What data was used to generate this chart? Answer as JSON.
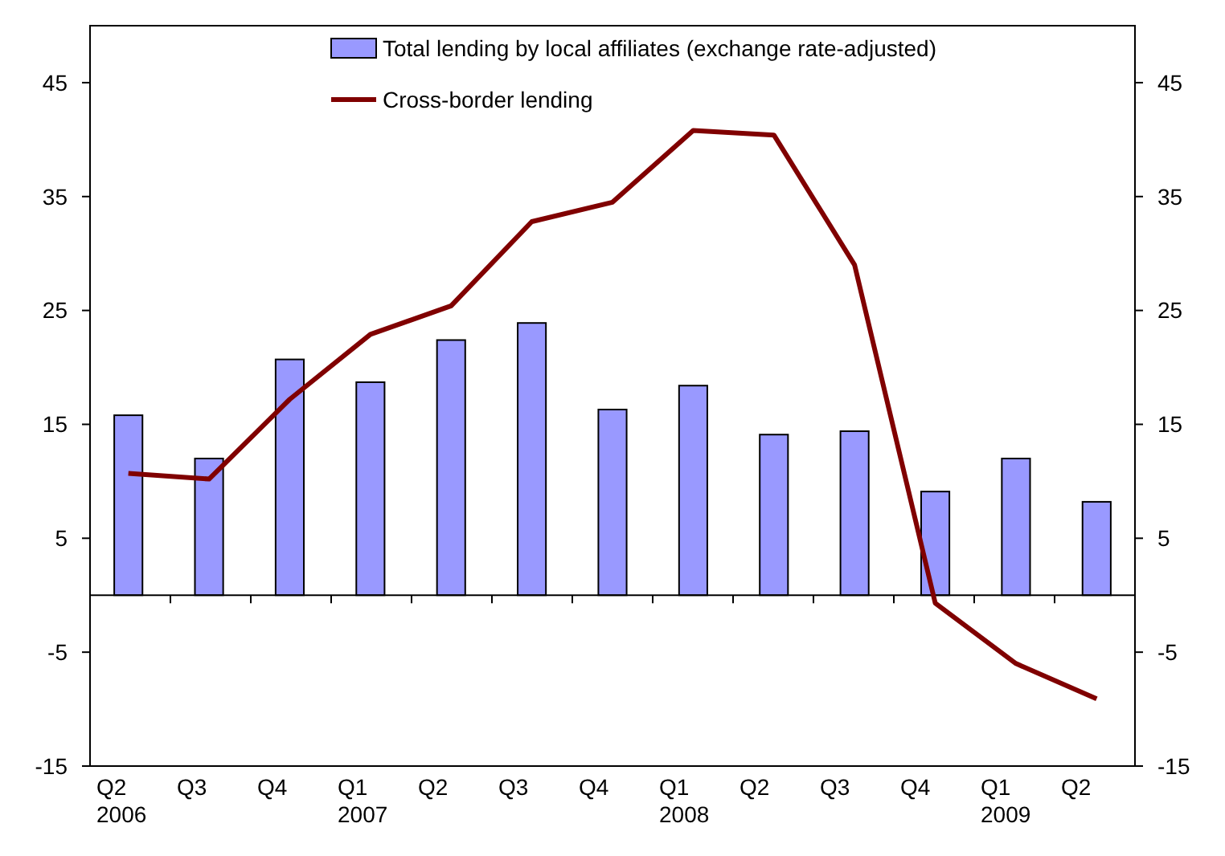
{
  "chart_data": {
    "type": "bar",
    "categories": [
      "Q2\n2006",
      "Q3",
      "Q4",
      "Q1\n2007",
      "Q2",
      "Q3",
      "Q4",
      "Q1\n2008",
      "Q2",
      "Q3",
      "Q4",
      "Q1\n2009",
      "Q2"
    ],
    "series": [
      {
        "name": "Total lending by local affiliates (exchange rate-adjusted)",
        "color": "#9999ff",
        "values": [
          15.8,
          12,
          20.7,
          18.7,
          22.4,
          23.9,
          16.3,
          18.4,
          14.1,
          14.4,
          9.1,
          12,
          8.2
        ]
      },
      {
        "name": "Cross-border lending",
        "type": "line",
        "color": "#800000",
        "values": [
          10.7,
          10.2,
          17.2,
          22.9,
          25.4,
          32.8,
          34.5,
          40.8,
          40.4,
          29,
          -0.7,
          -6,
          -9.1
        ]
      }
    ],
    "ylim": [
      -15,
      50
    ],
    "yticks": [
      -15,
      -5,
      5,
      15,
      25,
      35,
      45
    ],
    "y2lim": [
      -15,
      50
    ],
    "y2ticks": [
      -15,
      -5,
      5,
      15,
      25,
      35,
      45
    ],
    "grid": false,
    "legend": "top"
  }
}
